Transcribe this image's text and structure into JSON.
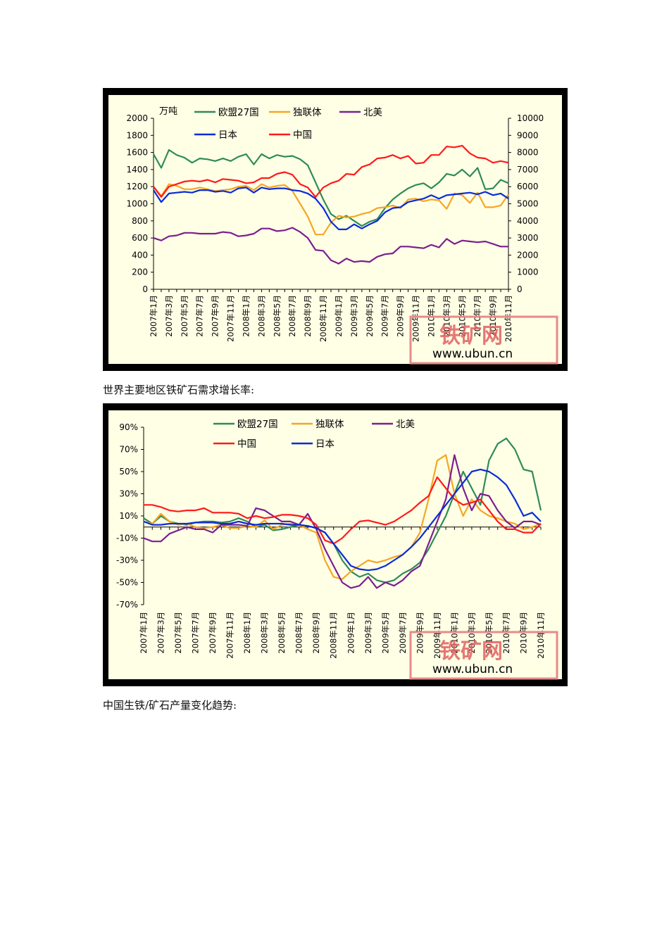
{
  "captions": {
    "growth_rate": "世界主要地区铁矿石需求增长率:",
    "china_trend": "中国生铁/矿石产量变化趋势:"
  },
  "watermark": {
    "text": "铁矿网",
    "url": "www.ubun.cn"
  },
  "colors": {
    "eu27": "#2e8b57",
    "cis": "#f5a623",
    "north_america": "#7b1f8f",
    "china": "#ff1a1a",
    "japan": "#0a2bd6",
    "plot_bg": "#ffffe6"
  },
  "chart_data": [
    {
      "id": "demand",
      "type": "line",
      "unit_label": "万吨",
      "categories": [
        "2007年1月",
        "2007年2月",
        "2007年3月",
        "2007年4月",
        "2007年5月",
        "2007年6月",
        "2007年7月",
        "2007年8月",
        "2007年9月",
        "2007年10月",
        "2007年11月",
        "2007年12月",
        "2008年1月",
        "2008年2月",
        "2008年3月",
        "2008年4月",
        "2008年5月",
        "2008年6月",
        "2008年7月",
        "2008年8月",
        "2008年9月",
        "2008年10月",
        "2008年11月",
        "2008年12月",
        "2009年1月",
        "2009年2月",
        "2009年3月",
        "2009年4月",
        "2009年5月",
        "2009年6月",
        "2009年7月",
        "2009年8月",
        "2009年9月",
        "2009年10月",
        "2009年11月",
        "2009年12月",
        "2010年1月",
        "2010年2月",
        "2010年3月",
        "2010年4月",
        "2010年5月",
        "2010年6月",
        "2010年7月",
        "2010年8月",
        "2010年9月",
        "2010年10月",
        "2010年11月"
      ],
      "tick_labels": [
        "2007年1月",
        "2007年3月",
        "2007年5月",
        "2007年7月",
        "2007年9月",
        "2007年11月",
        "2008年1月",
        "2008年3月",
        "2008年5月",
        "2008年7月",
        "2008年9月",
        "2008年11月",
        "2009年1月",
        "2009年3月",
        "2009年5月",
        "2009年7月",
        "2009年9月",
        "2009年11月",
        "2010年1月",
        "2010年3月",
        "2010年5月",
        "2010年7月",
        "2010年9月",
        "2010年11月"
      ],
      "left_axis": {
        "ylim": [
          0,
          2000
        ],
        "ticks": [
          0,
          200,
          400,
          600,
          800,
          1000,
          1200,
          1400,
          1600,
          1800,
          2000
        ]
      },
      "right_axis": {
        "ylim": [
          0,
          10000
        ],
        "ticks": [
          0,
          1000,
          2000,
          3000,
          4000,
          5000,
          6000,
          7000,
          8000,
          9000,
          10000
        ]
      },
      "legend_rows": [
        [
          "eu27",
          "cis",
          "north_america"
        ],
        [
          "japan",
          "china"
        ]
      ],
      "series": [
        {
          "key": "eu27",
          "name": "欧盟27国",
          "axis": "left",
          "values": [
            1580,
            1420,
            1630,
            1570,
            1540,
            1480,
            1530,
            1520,
            1500,
            1530,
            1500,
            1550,
            1580,
            1460,
            1580,
            1530,
            1570,
            1550,
            1560,
            1520,
            1450,
            1250,
            1050,
            880,
            820,
            860,
            800,
            740,
            790,
            820,
            950,
            1050,
            1120,
            1180,
            1220,
            1240,
            1180,
            1250,
            1350,
            1330,
            1400,
            1320,
            1420,
            1170,
            1180,
            1280,
            1240
          ]
        },
        {
          "key": "cis",
          "name": "独联体",
          "axis": "left",
          "values": [
            1200,
            1090,
            1230,
            1210,
            1170,
            1170,
            1190,
            1170,
            1150,
            1160,
            1170,
            1200,
            1210,
            1160,
            1230,
            1190,
            1210,
            1220,
            1150,
            1000,
            850,
            640,
            640,
            780,
            860,
            840,
            850,
            880,
            900,
            950,
            960,
            980,
            950,
            1050,
            1060,
            1030,
            1050,
            1040,
            940,
            1120,
            1100,
            1010,
            1130,
            960,
            960,
            980,
            1110
          ]
        },
        {
          "key": "north_america",
          "name": "北美",
          "axis": "right",
          "values": [
            3000,
            2850,
            3100,
            3150,
            3300,
            3300,
            3250,
            3250,
            3250,
            3350,
            3300,
            3100,
            3150,
            3250,
            3550,
            3550,
            3400,
            3450,
            3600,
            3350,
            3000,
            2300,
            2250,
            1700,
            1500,
            1800,
            1600,
            1650,
            1600,
            1900,
            2050,
            2100,
            2500,
            2500,
            2450,
            2400,
            2600,
            2450,
            2950,
            2650,
            2850,
            2800,
            2750,
            2800,
            2650,
            2500,
            2500
          ]
        },
        {
          "key": "china",
          "name": "中国",
          "axis": "right",
          "values": [
            6000,
            5400,
            6000,
            6150,
            6300,
            6350,
            6300,
            6400,
            6250,
            6450,
            6400,
            6350,
            6200,
            6250,
            6500,
            6500,
            6750,
            6850,
            6700,
            6150,
            5950,
            5400,
            5950,
            6200,
            6350,
            6750,
            6700,
            7150,
            7300,
            7650,
            7700,
            7850,
            7650,
            7800,
            7350,
            7400,
            7850,
            7850,
            8350,
            8300,
            8400,
            7950,
            7700,
            7650,
            7400,
            7500,
            7400
          ]
        },
        {
          "key": "japan",
          "name": "日本",
          "axis": "right",
          "values": [
            5800,
            5100,
            5600,
            5650,
            5700,
            5650,
            5800,
            5800,
            5700,
            5750,
            5650,
            5900,
            5950,
            5650,
            5950,
            5850,
            5900,
            5900,
            5800,
            5750,
            5600,
            5300,
            4750,
            3950,
            3500,
            3500,
            3800,
            3550,
            3800,
            4000,
            4500,
            4750,
            4800,
            5100,
            5200,
            5300,
            5500,
            5300,
            5500,
            5550,
            5600,
            5650,
            5550,
            5700,
            5500,
            5600,
            5300
          ]
        }
      ]
    },
    {
      "id": "growth",
      "type": "line",
      "categories": [
        "2007年1月",
        "2007年2月",
        "2007年3月",
        "2007年4月",
        "2007年5月",
        "2007年6月",
        "2007年7月",
        "2007年8月",
        "2007年9月",
        "2007年10月",
        "2007年11月",
        "2007年12月",
        "2008年1月",
        "2008年2月",
        "2008年3月",
        "2008年4月",
        "2008年5月",
        "2008年6月",
        "2008年7月",
        "2008年8月",
        "2008年9月",
        "2008年10月",
        "2008年11月",
        "2008年12月",
        "2009年1月",
        "2009年2月",
        "2009年3月",
        "2009年4月",
        "2009年5月",
        "2009年6月",
        "2009年7月",
        "2009年8月",
        "2009年9月",
        "2009年10月",
        "2009年11月",
        "2009年12月",
        "2010年1月",
        "2010年2月",
        "2010年3月",
        "2010年4月",
        "2010年5月",
        "2010年6月",
        "2010年7月",
        "2010年8月",
        "2010年9月",
        "2010年10月",
        "2010年11月"
      ],
      "tick_labels": [
        "2007年1月",
        "2007年3月",
        "2007年5月",
        "2007年7月",
        "2007年9月",
        "2007年11月",
        "2008年1月",
        "2008年3月",
        "2008年5月",
        "2008年7月",
        "2008年9月",
        "2008年11月",
        "2009年1月",
        "2009年3月",
        "2009年5月",
        "2009年7月",
        "2009年9月",
        "2009年11月",
        "2010年1月",
        "2010年3月",
        "2010年5月",
        "2010年7月",
        "2010年9月",
        "2010年11月"
      ],
      "left_axis": {
        "ylim": [
          -70,
          90
        ],
        "ticks": [
          "-70%",
          "-50%",
          "-30%",
          "-10%",
          "10%",
          "30%",
          "50%",
          "70%",
          "90%"
        ],
        "tick_values": [
          -70,
          -50,
          -30,
          -10,
          10,
          30,
          50,
          70,
          90
        ]
      },
      "legend_rows": [
        [
          "eu27",
          "cis",
          "north_america"
        ],
        [
          "china",
          "japan"
        ]
      ],
      "series": [
        {
          "key": "eu27",
          "name": "欧盟27国",
          "values": [
            8,
            3,
            10,
            5,
            3,
            2,
            4,
            5,
            5,
            4,
            5,
            8,
            5,
            0,
            2,
            -3,
            -2,
            0,
            2,
            1,
            -1,
            -5,
            -15,
            -30,
            -40,
            -45,
            -42,
            -48,
            -50,
            -48,
            -42,
            -38,
            -32,
            -20,
            -5,
            10,
            30,
            50,
            35,
            20,
            60,
            75,
            80,
            70,
            52,
            50,
            15
          ]
        },
        {
          "key": "cis",
          "name": "独联体",
          "values": [
            5,
            3,
            12,
            5,
            2,
            3,
            0,
            -1,
            0,
            2,
            -1,
            -1,
            1,
            0,
            6,
            -2,
            2,
            3,
            2,
            -2,
            -5,
            -30,
            -45,
            -47,
            -40,
            -35,
            -30,
            -32,
            -30,
            -27,
            -25,
            -18,
            -5,
            25,
            60,
            65,
            30,
            10,
            25,
            15,
            10,
            8,
            5,
            3,
            -2,
            0,
            3
          ]
        },
        {
          "key": "north_america",
          "name": "北美",
          "values": [
            -10,
            -13,
            -13,
            -6,
            -3,
            0,
            -2,
            -2,
            -5,
            2,
            2,
            2,
            1,
            17,
            15,
            10,
            5,
            5,
            2,
            12,
            -2,
            -20,
            -35,
            -50,
            -55,
            -53,
            -45,
            -55,
            -50,
            -53,
            -48,
            -40,
            -35,
            -15,
            5,
            25,
            65,
            35,
            15,
            30,
            28,
            15,
            5,
            -1,
            5,
            5,
            2
          ]
        },
        {
          "key": "china",
          "name": "中国",
          "values": [
            20,
            20,
            18,
            15,
            14,
            15,
            15,
            17,
            13,
            13,
            13,
            12,
            8,
            10,
            8,
            9,
            11,
            11,
            10,
            8,
            2,
            -12,
            -15,
            -10,
            -2,
            5,
            6,
            4,
            2,
            5,
            10,
            15,
            22,
            28,
            45,
            35,
            25,
            20,
            22,
            25,
            15,
            5,
            -2,
            -2,
            -5,
            -5,
            3
          ]
        },
        {
          "key": "japan",
          "name": "日本",
          "values": [
            5,
            2,
            2,
            3,
            3,
            3,
            4,
            4,
            4,
            3,
            3,
            5,
            3,
            2,
            3,
            3,
            3,
            2,
            2,
            1,
            -1,
            -5,
            -15,
            -25,
            -35,
            -38,
            -39,
            -38,
            -35,
            -30,
            -25,
            -18,
            -10,
            0,
            10,
            20,
            30,
            40,
            50,
            52,
            50,
            45,
            38,
            25,
            10,
            13,
            5
          ]
        }
      ]
    }
  ]
}
